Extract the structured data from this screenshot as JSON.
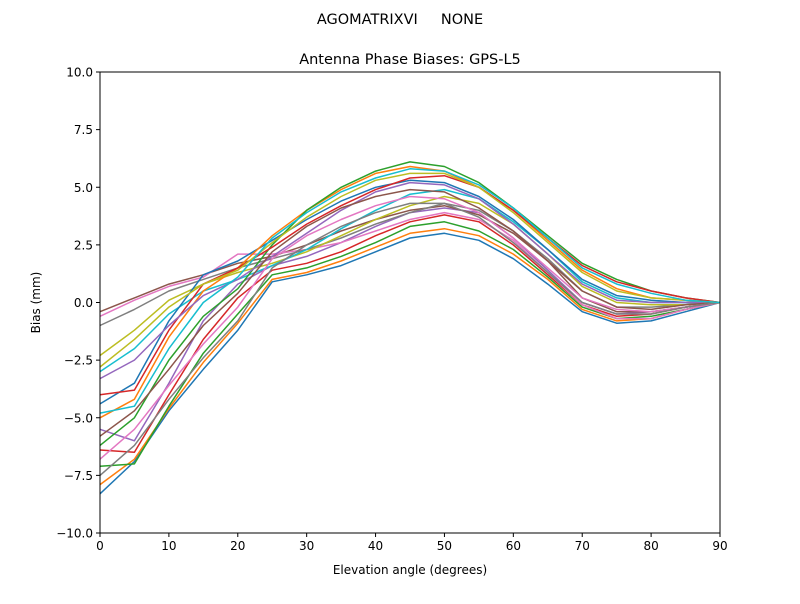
{
  "suptitle": "AGOMATRIXVI     NONE",
  "chart_data": {
    "type": "line",
    "title": "Antenna Phase Biases: GPS-L5",
    "xlabel": "Elevation angle (degrees)",
    "ylabel": "Bias (mm)",
    "xlim": [
      0,
      90
    ],
    "ylim": [
      -10,
      10
    ],
    "xticks": [
      0,
      10,
      20,
      30,
      40,
      50,
      60,
      70,
      80,
      90
    ],
    "xtick_labels": [
      "0",
      "10",
      "20",
      "30",
      "40",
      "50",
      "60",
      "70",
      "80",
      "90"
    ],
    "yticks": [
      -10,
      -7.5,
      -5,
      -2.5,
      0,
      2.5,
      5,
      7.5,
      10
    ],
    "ytick_labels": [
      "−10.0",
      "−7.5",
      "−5.0",
      "−2.5",
      "0.0",
      "2.5",
      "5.0",
      "7.5",
      "10.0"
    ],
    "grid": false,
    "legend": "none",
    "colors": [
      "#1f77b4",
      "#ff7f0e",
      "#2ca02c",
      "#d62728",
      "#9467bd",
      "#8c564b",
      "#e377c2",
      "#7f7f7f",
      "#bcbd22",
      "#17becf"
    ],
    "x": [
      0,
      5,
      10,
      15,
      20,
      25,
      30,
      35,
      40,
      45,
      50,
      55,
      60,
      65,
      70,
      75,
      80,
      85,
      90
    ],
    "series": [
      {
        "values": [
          -8.3,
          -6.9,
          -4.7,
          -2.9,
          -1.2,
          0.9,
          1.2,
          1.6,
          2.2,
          2.8,
          3.0,
          2.7,
          1.9,
          0.8,
          -0.4,
          -0.9,
          -0.8,
          -0.4,
          0
        ]
      },
      {
        "values": [
          -7.9,
          -6.8,
          -4.6,
          -2.6,
          -0.9,
          1.0,
          1.3,
          1.8,
          2.4,
          3.0,
          3.2,
          2.9,
          2.1,
          1.0,
          -0.3,
          -0.8,
          -0.7,
          -0.3,
          0
        ]
      },
      {
        "values": [
          -7.1,
          -7.0,
          -4.5,
          -2.2,
          -0.5,
          1.2,
          1.5,
          2.0,
          2.6,
          3.3,
          3.5,
          3.1,
          2.3,
          1.1,
          -0.2,
          -0.7,
          -0.6,
          -0.3,
          0
        ]
      },
      {
        "values": [
          -6.4,
          -6.5,
          -4.0,
          -1.6,
          0.2,
          1.4,
          1.7,
          2.2,
          2.9,
          3.5,
          3.8,
          3.5,
          2.5,
          1.2,
          -0.1,
          -0.6,
          -0.5,
          -0.2,
          0
        ]
      },
      {
        "values": [
          -5.5,
          -6.0,
          -3.5,
          -0.8,
          0.8,
          1.6,
          2.0,
          2.6,
          3.3,
          3.9,
          4.1,
          3.9,
          2.8,
          1.4,
          0.0,
          -0.5,
          -0.4,
          -0.2,
          0
        ]
      },
      {
        "values": [
          -0.4,
          0.2,
          0.8,
          1.2,
          1.7,
          2.0,
          2.5,
          3.1,
          3.6,
          4.0,
          4.2,
          3.8,
          3.0,
          1.8,
          0.2,
          -0.4,
          -0.4,
          -0.2,
          0
        ]
      },
      {
        "values": [
          -0.6,
          0.1,
          0.7,
          1.1,
          2.1,
          2.1,
          2.3,
          2.6,
          3.1,
          3.6,
          3.9,
          3.6,
          2.7,
          1.3,
          -0.1,
          -0.7,
          -0.7,
          -0.3,
          0
        ]
      },
      {
        "values": [
          -1.0,
          -0.3,
          0.5,
          1.0,
          1.5,
          1.9,
          2.3,
          2.8,
          3.4,
          3.9,
          4.3,
          4.0,
          3.1,
          1.9,
          0.5,
          -0.2,
          -0.2,
          -0.1,
          0
        ]
      },
      {
        "values": [
          -2.3,
          -1.2,
          0.1,
          0.8,
          1.3,
          1.7,
          2.2,
          2.9,
          3.6,
          4.2,
          4.6,
          4.3,
          3.4,
          2.1,
          0.7,
          0.0,
          -0.1,
          -0.1,
          0
        ]
      },
      {
        "values": [
          -3.0,
          -2.0,
          -0.5,
          0.5,
          1.0,
          1.6,
          2.3,
          3.2,
          4.0,
          4.7,
          4.9,
          4.5,
          3.5,
          2.3,
          0.9,
          0.2,
          0.0,
          0.0,
          0
        ]
      },
      {
        "values": [
          -4.4,
          -3.5,
          -0.8,
          1.2,
          1.8,
          2.7,
          3.6,
          4.4,
          5.0,
          5.3,
          5.2,
          4.6,
          3.6,
          2.3,
          1.0,
          0.3,
          0.1,
          0.0,
          0
        ]
      },
      {
        "values": [
          -5.0,
          -4.2,
          -1.5,
          0.5,
          1.5,
          2.9,
          4.0,
          4.9,
          5.6,
          5.9,
          5.7,
          5.0,
          4.0,
          2.7,
          1.4,
          0.6,
          0.2,
          0.1,
          0
        ]
      },
      {
        "values": [
          -6.2,
          -5.0,
          -2.5,
          -0.6,
          0.6,
          2.5,
          4.0,
          5.0,
          5.7,
          6.1,
          5.9,
          5.2,
          4.1,
          2.9,
          1.7,
          1.0,
          0.5,
          0.2,
          0
        ]
      },
      {
        "values": [
          -4.0,
          -3.8,
          -1.2,
          0.8,
          1.5,
          2.4,
          3.4,
          4.2,
          4.9,
          5.4,
          5.5,
          5.0,
          4.0,
          2.8,
          1.6,
          0.9,
          0.5,
          0.2,
          0
        ]
      },
      {
        "values": [
          -3.3,
          -2.5,
          -1.0,
          0.3,
          1.0,
          2.0,
          3.0,
          4.0,
          4.8,
          5.2,
          5.1,
          4.5,
          3.4,
          2.1,
          0.8,
          0.1,
          0.0,
          0.0,
          0
        ]
      },
      {
        "values": [
          -5.8,
          -4.7,
          -2.9,
          -1.0,
          0.4,
          2.2,
          3.3,
          4.1,
          4.6,
          4.9,
          4.8,
          4.1,
          3.1,
          1.8,
          0.5,
          -0.2,
          -0.3,
          -0.1,
          0
        ]
      },
      {
        "values": [
          -6.8,
          -5.5,
          -3.6,
          -1.8,
          -0.2,
          1.9,
          2.9,
          3.6,
          4.2,
          4.6,
          4.5,
          3.9,
          2.8,
          1.5,
          0.2,
          -0.3,
          -0.4,
          -0.2,
          0
        ]
      },
      {
        "values": [
          -7.5,
          -6.2,
          -4.2,
          -2.4,
          -0.8,
          1.5,
          2.5,
          3.3,
          3.9,
          4.3,
          4.3,
          3.7,
          2.6,
          1.3,
          0.0,
          -0.5,
          -0.5,
          -0.2,
          0
        ]
      },
      {
        "values": [
          -2.8,
          -1.6,
          -0.2,
          0.8,
          1.4,
          2.6,
          3.7,
          4.6,
          5.3,
          5.6,
          5.6,
          5.0,
          3.9,
          2.6,
          1.3,
          0.5,
          0.2,
          0.1,
          0
        ]
      },
      {
        "values": [
          -4.8,
          -4.5,
          -2.0,
          0.0,
          1.1,
          2.8,
          3.9,
          4.8,
          5.4,
          5.8,
          5.7,
          5.1,
          4.1,
          2.8,
          1.5,
          0.8,
          0.4,
          0.1,
          0
        ]
      }
    ]
  }
}
